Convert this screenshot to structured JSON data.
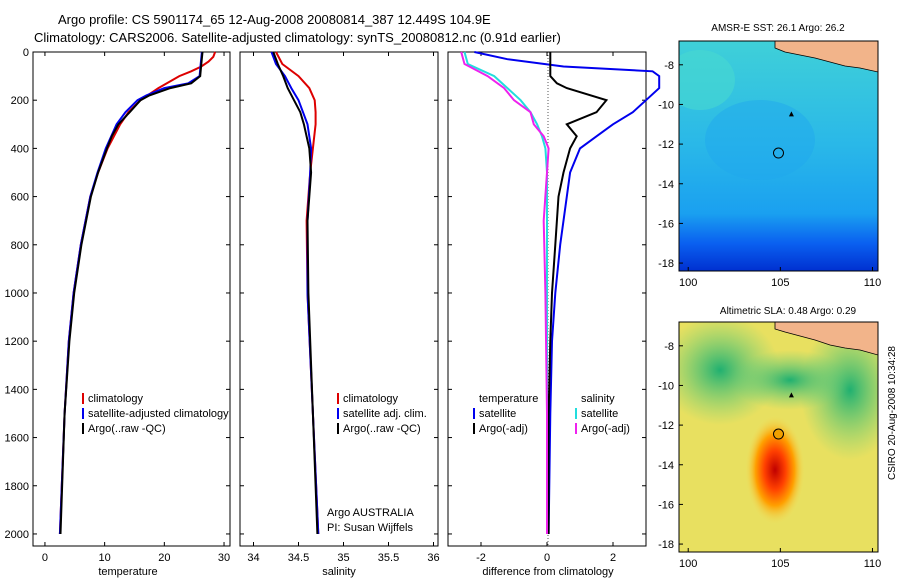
{
  "figure": {
    "title_line1": "Argo profile: CS 5901174_65 12-Aug-2008 20080814_387 12.449S 104.9E",
    "title_line2": "Climatology: CARS2006. Satellite-adjusted climatology: synTS_20080812.nc (0.91d earlier)",
    "credit": "CSIRO 20-Aug-2008 10:34:28",
    "argo_label": "Argo AUSTRALIA",
    "pi_label": "PI: Susan Wijffels"
  },
  "colors": {
    "climatology": "#dd0000",
    "satellite": "#0000ee",
    "argo": "#000000",
    "sal_satellite": "#22dddd",
    "sal_argo": "#ee22ee",
    "land": "#f2b48a"
  },
  "chart_data": [
    {
      "type": "line",
      "id": "temperature",
      "xlabel": "temperature",
      "xlim": [
        -2,
        31
      ],
      "ylim": [
        2050,
        0
      ],
      "xticks": [
        0,
        10,
        20,
        30
      ],
      "yticks": [
        0,
        200,
        400,
        600,
        800,
        1000,
        1200,
        1400,
        1600,
        1800,
        2000
      ],
      "legend": [
        "climatology",
        "satellite-adjusted climatology",
        "Argo(..raw -QC)"
      ],
      "series": [
        {
          "name": "climatology",
          "color": "#dd0000",
          "depth": [
            0,
            20,
            40,
            60,
            80,
            100,
            150,
            200,
            250,
            300,
            400,
            500,
            600,
            800,
            1000,
            1200,
            1500,
            2000
          ],
          "values": [
            28.5,
            28.2,
            27.4,
            26.2,
            24.5,
            22.5,
            19.0,
            16.0,
            14.0,
            12.6,
            10.5,
            8.9,
            7.6,
            6.0,
            4.8,
            4.0,
            3.3,
            2.5
          ]
        },
        {
          "name": "satellite-adjusted climatology",
          "color": "#0000ee",
          "depth": [
            0,
            50,
            100,
            130,
            150,
            180,
            200,
            250,
            300,
            400,
            500,
            600,
            800,
            1000,
            1200,
            1500,
            2000
          ],
          "values": [
            26.3,
            26.1,
            25.9,
            24.0,
            20.0,
            17.0,
            15.5,
            13.5,
            12.0,
            10.2,
            8.8,
            7.6,
            6.0,
            4.8,
            4.0,
            3.3,
            2.5
          ]
        },
        {
          "name": "Argo(..raw -QC)",
          "color": "#000000",
          "depth": [
            0,
            50,
            100,
            130,
            150,
            180,
            200,
            250,
            300,
            350,
            400,
            500,
            600,
            800,
            1000,
            1200,
            1500,
            2000
          ],
          "values": [
            26.4,
            26.2,
            26.0,
            24.5,
            21.0,
            17.5,
            16.0,
            14.2,
            12.3,
            11.2,
            10.4,
            8.9,
            7.7,
            6.1,
            4.9,
            4.1,
            3.3,
            2.6
          ]
        }
      ]
    },
    {
      "type": "line",
      "id": "salinity",
      "xlabel": "salinity",
      "xlim": [
        33.85,
        36.05
      ],
      "ylim": [
        2050,
        0
      ],
      "xticks": [
        34,
        34.5,
        35,
        35.5,
        36
      ],
      "legend": [
        "climatology",
        "satellite adj. clim.",
        "Argo(..raw -QC)"
      ],
      "series": [
        {
          "name": "climatology",
          "color": "#dd0000",
          "depth": [
            0,
            50,
            100,
            150,
            200,
            250,
            300,
            400,
            500,
            700,
            1000,
            1500,
            2000
          ],
          "values": [
            34.25,
            34.32,
            34.5,
            34.62,
            34.68,
            34.69,
            34.69,
            34.66,
            34.63,
            34.59,
            34.6,
            34.66,
            34.72
          ]
        },
        {
          "name": "satellite adj. clim.",
          "color": "#0000ee",
          "depth": [
            0,
            50,
            100,
            150,
            200,
            250,
            300,
            400,
            500,
            700,
            1000,
            1500,
            2000
          ],
          "values": [
            34.2,
            34.25,
            34.35,
            34.42,
            34.5,
            34.55,
            34.6,
            34.64,
            34.63,
            34.6,
            34.6,
            34.66,
            34.72
          ]
        },
        {
          "name": "Argo(..raw -QC)",
          "color": "#000000",
          "depth": [
            0,
            50,
            100,
            150,
            200,
            250,
            300,
            400,
            500,
            700,
            1000,
            1500,
            2000
          ],
          "values": [
            34.22,
            34.27,
            34.33,
            34.38,
            34.45,
            34.52,
            34.56,
            34.62,
            34.64,
            34.6,
            34.61,
            34.66,
            34.71
          ]
        }
      ]
    },
    {
      "type": "line",
      "id": "difference",
      "xlabel": "difference from climatology",
      "xlim": [
        -3,
        3
      ],
      "ylim": [
        2050,
        0
      ],
      "xticks": [
        -2,
        0,
        2
      ],
      "legend": [
        "temperature",
        "satellite",
        "Argo(-adj)",
        "salinity",
        "satellite",
        "Argo(-adj)"
      ],
      "series": [
        {
          "name": "temperature satellite",
          "color": "#0000ee",
          "depth": [
            0,
            30,
            60,
            80,
            100,
            150,
            200,
            250,
            300,
            350,
            400,
            500,
            600,
            800,
            1000,
            1200,
            1500,
            2000
          ],
          "values": [
            -2.2,
            -1.2,
            0.5,
            3.2,
            3.4,
            3.4,
            3.0,
            2.6,
            2.0,
            1.5,
            1.0,
            0.7,
            0.6,
            0.4,
            0.25,
            0.15,
            0.1,
            0.05
          ]
        },
        {
          "name": "temperature Argo(-adj)",
          "color": "#000000",
          "depth": [
            0,
            100,
            130,
            150,
            200,
            250,
            300,
            350,
            400,
            450,
            500,
            600,
            800,
            1000,
            1200,
            1500,
            2000
          ],
          "values": [
            0.1,
            0.1,
            0.3,
            0.6,
            1.8,
            1.5,
            0.6,
            0.9,
            0.7,
            0.6,
            0.5,
            0.35,
            0.25,
            0.15,
            0.1,
            0.05,
            0.05
          ]
        },
        {
          "name": "salinity satellite",
          "color": "#22dddd",
          "depth": [
            0,
            50,
            100,
            150,
            200,
            250,
            300,
            350,
            400,
            500,
            800,
            1200,
            1500,
            2000
          ],
          "values": [
            -2.5,
            -2.4,
            -1.6,
            -1.2,
            -0.8,
            -0.5,
            -0.3,
            -0.15,
            -0.05,
            0.0,
            0.0,
            0.0,
            0.0,
            0.0
          ]
        },
        {
          "name": "salinity Argo(-adj)",
          "color": "#ee22ee",
          "depth": [
            0,
            50,
            100,
            150,
            200,
            250,
            300,
            350,
            400,
            500,
            700,
            1000,
            1500,
            2000
          ],
          "values": [
            -2.6,
            -2.5,
            -1.8,
            -1.3,
            -1.0,
            -0.5,
            -0.4,
            -0.1,
            0.05,
            0.0,
            -0.1,
            -0.05,
            0.0,
            0.0
          ]
        }
      ]
    },
    {
      "type": "heatmap",
      "id": "sst_map",
      "title": "AMSR-E SST: 26.1 Argo: 26.2",
      "xlim": [
        99.5,
        110.3
      ],
      "ylim": [
        -18.4,
        -6.8
      ],
      "xticks": [
        100,
        105,
        110
      ],
      "yticks": [
        -8,
        -10,
        -12,
        -14,
        -16,
        -18
      ],
      "argo_position": [
        104.9,
        -12.45
      ],
      "marker": [
        105.6,
        -10.5
      ]
    },
    {
      "type": "heatmap",
      "id": "sla_map",
      "title": "Altimetric SLA: 0.48 Argo: 0.29",
      "xlim": [
        99.5,
        110.3
      ],
      "ylim": [
        -18.4,
        -6.8
      ],
      "xticks": [
        100,
        105,
        110
      ],
      "yticks": [
        -8,
        -10,
        -12,
        -14,
        -16,
        -18
      ],
      "argo_position": [
        104.9,
        -12.45
      ],
      "marker": [
        105.6,
        -10.5
      ]
    }
  ]
}
